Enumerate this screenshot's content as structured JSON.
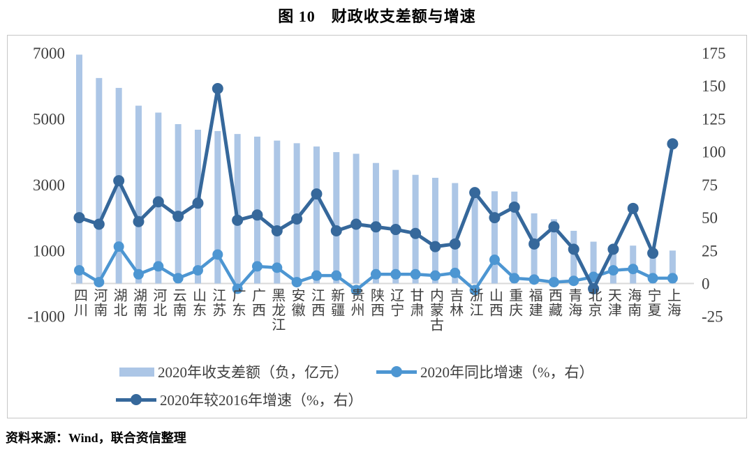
{
  "title": "图 10　财政收支差额与增速",
  "source": "资料来源：Wind，联合资信整理",
  "colors": {
    "bar": "#acc6e6",
    "line_yoy": "#4d96d2",
    "line_vs2016": "#36689b",
    "axis": "#d9d9d9",
    "tick_text": "#3e3e3e"
  },
  "legend": {
    "bar": "2020年收支差额（负，亿元）",
    "yoy": "2020年同比增速（%，右）",
    "vs2016": "2020年较2016年增速（%，右）"
  },
  "chart_data": {
    "type": "bar+line",
    "title": "图 10　财政收支差额与增速",
    "categories": [
      "四川",
      "河南",
      "湖北",
      "湖南",
      "河北",
      "云南",
      "山东",
      "江苏",
      "广东",
      "广西",
      "黑龙江",
      "安徽",
      "江西",
      "新疆",
      "贵州",
      "陕西",
      "辽宁",
      "甘肃",
      "内蒙古",
      "吉林",
      "浙江",
      "山西",
      "重庆",
      "福建",
      "西藏",
      "青海",
      "北京",
      "天津",
      "海南",
      "宁夏",
      "上海"
    ],
    "series": [
      {
        "name": "2020年收支差额（负，亿元）",
        "type": "bar",
        "axis": "left",
        "values": [
          6950,
          6240,
          5940,
          5400,
          5190,
          4840,
          4670,
          4630,
          4540,
          4460,
          4340,
          4260,
          4160,
          3990,
          3940,
          3660,
          3450,
          3300,
          3210,
          3050,
          2870,
          2800,
          2790,
          2130,
          1950,
          1600,
          1270,
          920,
          1150,
          800,
          1000
        ]
      },
      {
        "name": "2020年同比增速（%，右）",
        "type": "line",
        "axis": "right",
        "values": [
          10,
          1,
          28,
          7,
          13,
          4,
          10,
          22,
          -4,
          13,
          12,
          1,
          6,
          6,
          -5,
          7,
          7,
          7,
          6,
          8,
          -5,
          18,
          4,
          3,
          1,
          2,
          5,
          10,
          11,
          4,
          4
        ]
      },
      {
        "name": "2020年较2016年增速（%，右）",
        "type": "line",
        "axis": "right",
        "values": [
          50,
          45,
          78,
          47,
          62,
          51,
          61,
          148,
          48,
          52,
          40,
          49,
          68,
          40,
          45,
          43,
          41,
          38,
          28,
          30,
          69,
          50,
          58,
          30,
          43,
          26,
          -4,
          26,
          57,
          23,
          106
        ]
      }
    ],
    "left_axis": {
      "ticks": [
        7000,
        5000,
        3000,
        1000,
        -1000
      ],
      "min": -1000,
      "max": 7000
    },
    "right_axis": {
      "ticks": [
        175,
        150,
        125,
        100,
        75,
        50,
        25,
        0,
        -25
      ],
      "min": -25,
      "max": 175
    },
    "grid": false,
    "legend_position": "bottom-inside"
  }
}
